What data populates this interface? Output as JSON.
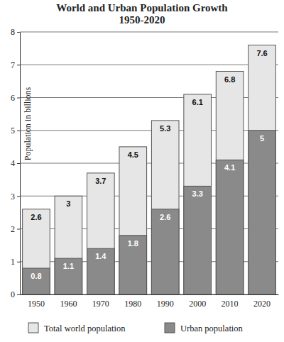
{
  "chart_data": {
    "type": "bar",
    "title": "World and Urban Population Growth",
    "subtitle": "1950-2020",
    "y_label": "Population in billions",
    "categories": [
      "1950",
      "1960",
      "1970",
      "1980",
      "1990",
      "2000",
      "2010",
      "2020"
    ],
    "series": [
      {
        "name": "Total world population",
        "color": "#e6e6e6",
        "values": [
          2.6,
          3.0,
          3.7,
          4.5,
          5.3,
          6.1,
          6.8,
          7.6
        ]
      },
      {
        "name": "Urban population",
        "color": "#8a8a8a",
        "values": [
          0.8,
          1.1,
          1.4,
          1.8,
          2.6,
          3.3,
          4.1,
          5.0
        ]
      }
    ],
    "value_labels_note_free": null,
    "ylim": [
      0,
      8
    ],
    "yticks": [
      0,
      1,
      2,
      3,
      4,
      5,
      6,
      7,
      8
    ],
    "grid": true,
    "stacked": false,
    "data_labels": true,
    "legend": "bottom"
  }
}
